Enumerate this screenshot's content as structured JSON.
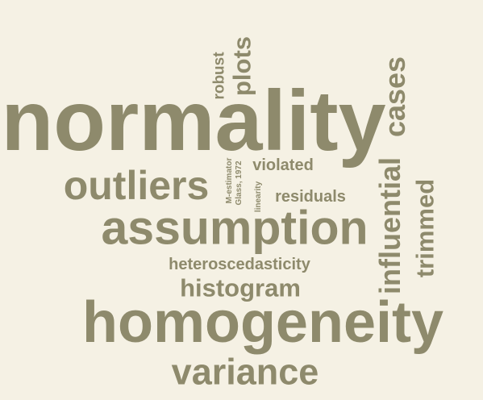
{
  "word_cloud": {
    "text_color": "#8e8a6c",
    "background_color": "#f5f1e4",
    "words": [
      "normality",
      "homogeneity",
      "assumption",
      "outliers",
      "variance",
      "histogram",
      "heteroscedasticity",
      "residuals",
      "violated",
      "influential",
      "cases",
      "trimmed",
      "plots",
      "robust",
      "M-estimator",
      "Glass, 1972",
      "linearity"
    ]
  }
}
